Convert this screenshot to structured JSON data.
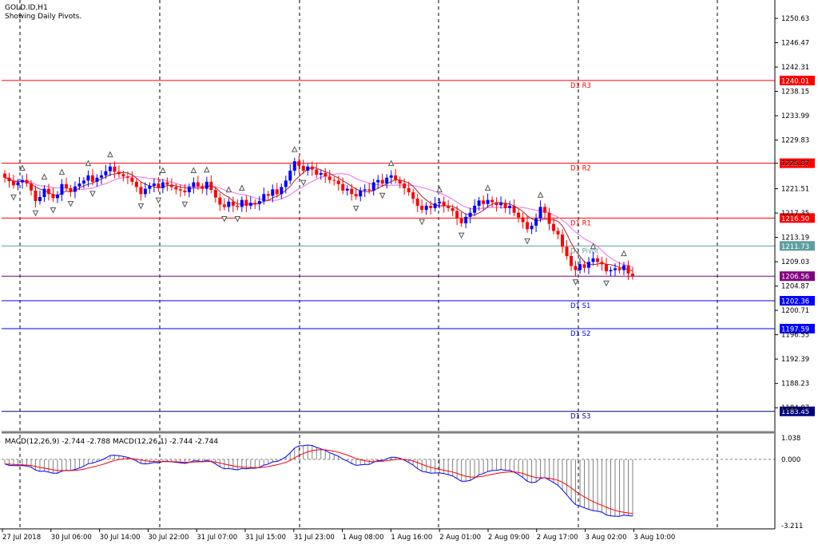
{
  "chart_data": [
    {
      "type": "candlestick",
      "symbol_title": "GOLD.ID,H1",
      "subtitle": "Showing Daily Pivots.",
      "ylim": [
        1180.0,
        1253.5
      ],
      "y_tick_labels": [
        "1250.63",
        "1246.47",
        "1242.31",
        "1238.15",
        "1233.99",
        "1229.83",
        "1225.87",
        "1221.51",
        "1217.35",
        "1213.19",
        "1209.03",
        "1204.87",
        "1200.71",
        "1196.55",
        "1192.39",
        "1188.23",
        "1184.07"
      ],
      "x_tick_labels": [
        "27 Jul 2018",
        "30 Jul 06:00",
        "30 Jul 14:00",
        "30 Jul 22:00",
        "31 Jul 07:00",
        "31 Jul 15:00",
        "31 Jul 23:00",
        "1 Aug 08:00",
        "1 Aug 16:00",
        "2 Aug 01:00",
        "2 Aug 09:00",
        "2 Aug 17:00",
        "3 Aug 02:00",
        "3 Aug 10:00"
      ],
      "pivot_levels": [
        {
          "name": "D1 R3",
          "value": 1240.01,
          "label": "1240.01",
          "color": "#ff0000"
        },
        {
          "name": "D1 R2",
          "value": 1225.87,
          "label": "1225.87",
          "color": "#ff0000"
        },
        {
          "name": "D1 R1",
          "value": 1216.5,
          "label": "1216.50",
          "color": "#ff0000"
        },
        {
          "name": "D1 Pivot",
          "value": 1211.73,
          "label": "1211.73",
          "color": "#5f9ea0"
        },
        {
          "name": "",
          "value": 1206.56,
          "label": "1206.56",
          "color": "#800080"
        },
        {
          "name": "D1 S1",
          "value": 1202.36,
          "label": "1202.36",
          "color": "#0000ff"
        },
        {
          "name": "D1 S2",
          "value": 1197.59,
          "label": "1197.59",
          "color": "#0000ff"
        },
        {
          "name": "D1 S3",
          "value": 1183.45,
          "label": "1183.45",
          "color": "#000080"
        }
      ],
      "bullish_color": "#0000ff",
      "bearish_color": "#ff0000",
      "ma_fast_color": "#a52a2a",
      "ma_slow_color": "#ee82ee",
      "close_values": [
        1223.4,
        1222.8,
        1222.1,
        1222.6,
        1223.0,
        1222.4,
        1221.2,
        1219.4,
        1220.1,
        1221.5,
        1220.6,
        1219.9,
        1220.5,
        1222.3,
        1221.6,
        1221.0,
        1221.9,
        1222.4,
        1222.9,
        1223.8,
        1222.7,
        1223.4,
        1223.8,
        1224.5,
        1225.3,
        1224.4,
        1224.0,
        1223.6,
        1223.4,
        1222.7,
        1221.8,
        1220.6,
        1221.5,
        1222.0,
        1222.4,
        1221.6,
        1222.6,
        1222.2,
        1221.8,
        1221.4,
        1221.2,
        1220.9,
        1221.8,
        1222.6,
        1221.9,
        1221.5,
        1222.7,
        1221.3,
        1220.0,
        1218.8,
        1218.4,
        1219.3,
        1218.6,
        1218.4,
        1219.6,
        1218.6,
        1219.1,
        1218.9,
        1219.4,
        1220.6,
        1220.3,
        1221.4,
        1220.6,
        1221.8,
        1222.9,
        1224.6,
        1226.2,
        1225.4,
        1224.6,
        1225.3,
        1224.8,
        1223.9,
        1224.2,
        1223.6,
        1223.0,
        1222.9,
        1222.3,
        1221.2,
        1221.5,
        1220.6,
        1220.2,
        1221.2,
        1221.4,
        1221.2,
        1222.6,
        1223.0,
        1222.4,
        1223.4,
        1223.8,
        1223.0,
        1222.4,
        1221.6,
        1220.9,
        1219.8,
        1218.6,
        1217.9,
        1218.6,
        1218.2,
        1219.0,
        1219.3,
        1218.5,
        1218.2,
        1217.7,
        1216.4,
        1215.6,
        1216.7,
        1217.4,
        1218.6,
        1219.5,
        1218.9,
        1219.6,
        1219.2,
        1218.7,
        1219.1,
        1218.2,
        1218.6,
        1217.4,
        1216.6,
        1215.8,
        1214.6,
        1215.2,
        1216.4,
        1218.4,
        1217.4,
        1215.5,
        1214.3,
        1213.7,
        1211.6,
        1210.0,
        1208.3,
        1207.6,
        1208.6,
        1208.0,
        1209.0,
        1209.6,
        1209.0,
        1208.6,
        1207.4,
        1207.6,
        1207.9,
        1207.6,
        1208.4,
        1207.0,
        1206.56
      ],
      "macd": {
        "label": "MACD(12,26,9) -2.744 -2.788 MACD(12,26,1) -2.744 -2.744",
        "ylim": [
          -3.211,
          1.038
        ],
        "y_tick_labels": [
          "1.038",
          "0.000",
          "-3.211"
        ],
        "histogram_color": "#808080",
        "main_color": "#0000ff",
        "signal_color": "#ff0000",
        "main_values": [
          -0.22,
          -0.29,
          -0.3,
          -0.31,
          -0.3,
          -0.32,
          -0.38,
          -0.52,
          -0.58,
          -0.57,
          -0.62,
          -0.67,
          -0.67,
          -0.57,
          -0.53,
          -0.54,
          -0.49,
          -0.42,
          -0.33,
          -0.21,
          -0.18,
          -0.11,
          -0.04,
          0.07,
          0.19,
          0.2,
          0.18,
          0.14,
          0.1,
          0.03,
          -0.08,
          -0.2,
          -0.22,
          -0.2,
          -0.15,
          -0.17,
          -0.1,
          -0.09,
          -0.12,
          -0.14,
          -0.17,
          -0.2,
          -0.15,
          -0.07,
          -0.08,
          -0.11,
          -0.04,
          -0.11,
          -0.22,
          -0.36,
          -0.46,
          -0.44,
          -0.48,
          -0.51,
          -0.44,
          -0.46,
          -0.43,
          -0.43,
          -0.39,
          -0.28,
          -0.23,
          -0.12,
          -0.1,
          -0.01,
          0.12,
          0.32,
          0.55,
          0.65,
          0.66,
          0.69,
          0.67,
          0.58,
          0.51,
          0.43,
          0.32,
          0.24,
          0.15,
          0.01,
          -0.08,
          -0.2,
          -0.29,
          -0.27,
          -0.25,
          -0.25,
          -0.14,
          -0.06,
          -0.06,
          0.03,
          0.1,
          0.1,
          0.05,
          -0.04,
          -0.15,
          -0.28,
          -0.45,
          -0.58,
          -0.62,
          -0.67,
          -0.66,
          -0.65,
          -0.69,
          -0.74,
          -0.8,
          -0.93,
          -1.06,
          -1.06,
          -1.02,
          -0.9,
          -0.75,
          -0.69,
          -0.59,
          -0.54,
          -0.53,
          -0.49,
          -0.53,
          -0.53,
          -0.62,
          -0.74,
          -0.88,
          -1.06,
          -1.13,
          -1.1,
          -0.93,
          -0.89,
          -1.0,
          -1.13,
          -1.26,
          -1.48,
          -1.72,
          -1.97,
          -2.19,
          -2.26,
          -2.35,
          -2.42,
          -2.48,
          -2.51,
          -2.56,
          -2.69,
          -2.74,
          -2.75,
          -2.76,
          -2.7,
          -2.73,
          -2.744
        ]
      }
    }
  ]
}
